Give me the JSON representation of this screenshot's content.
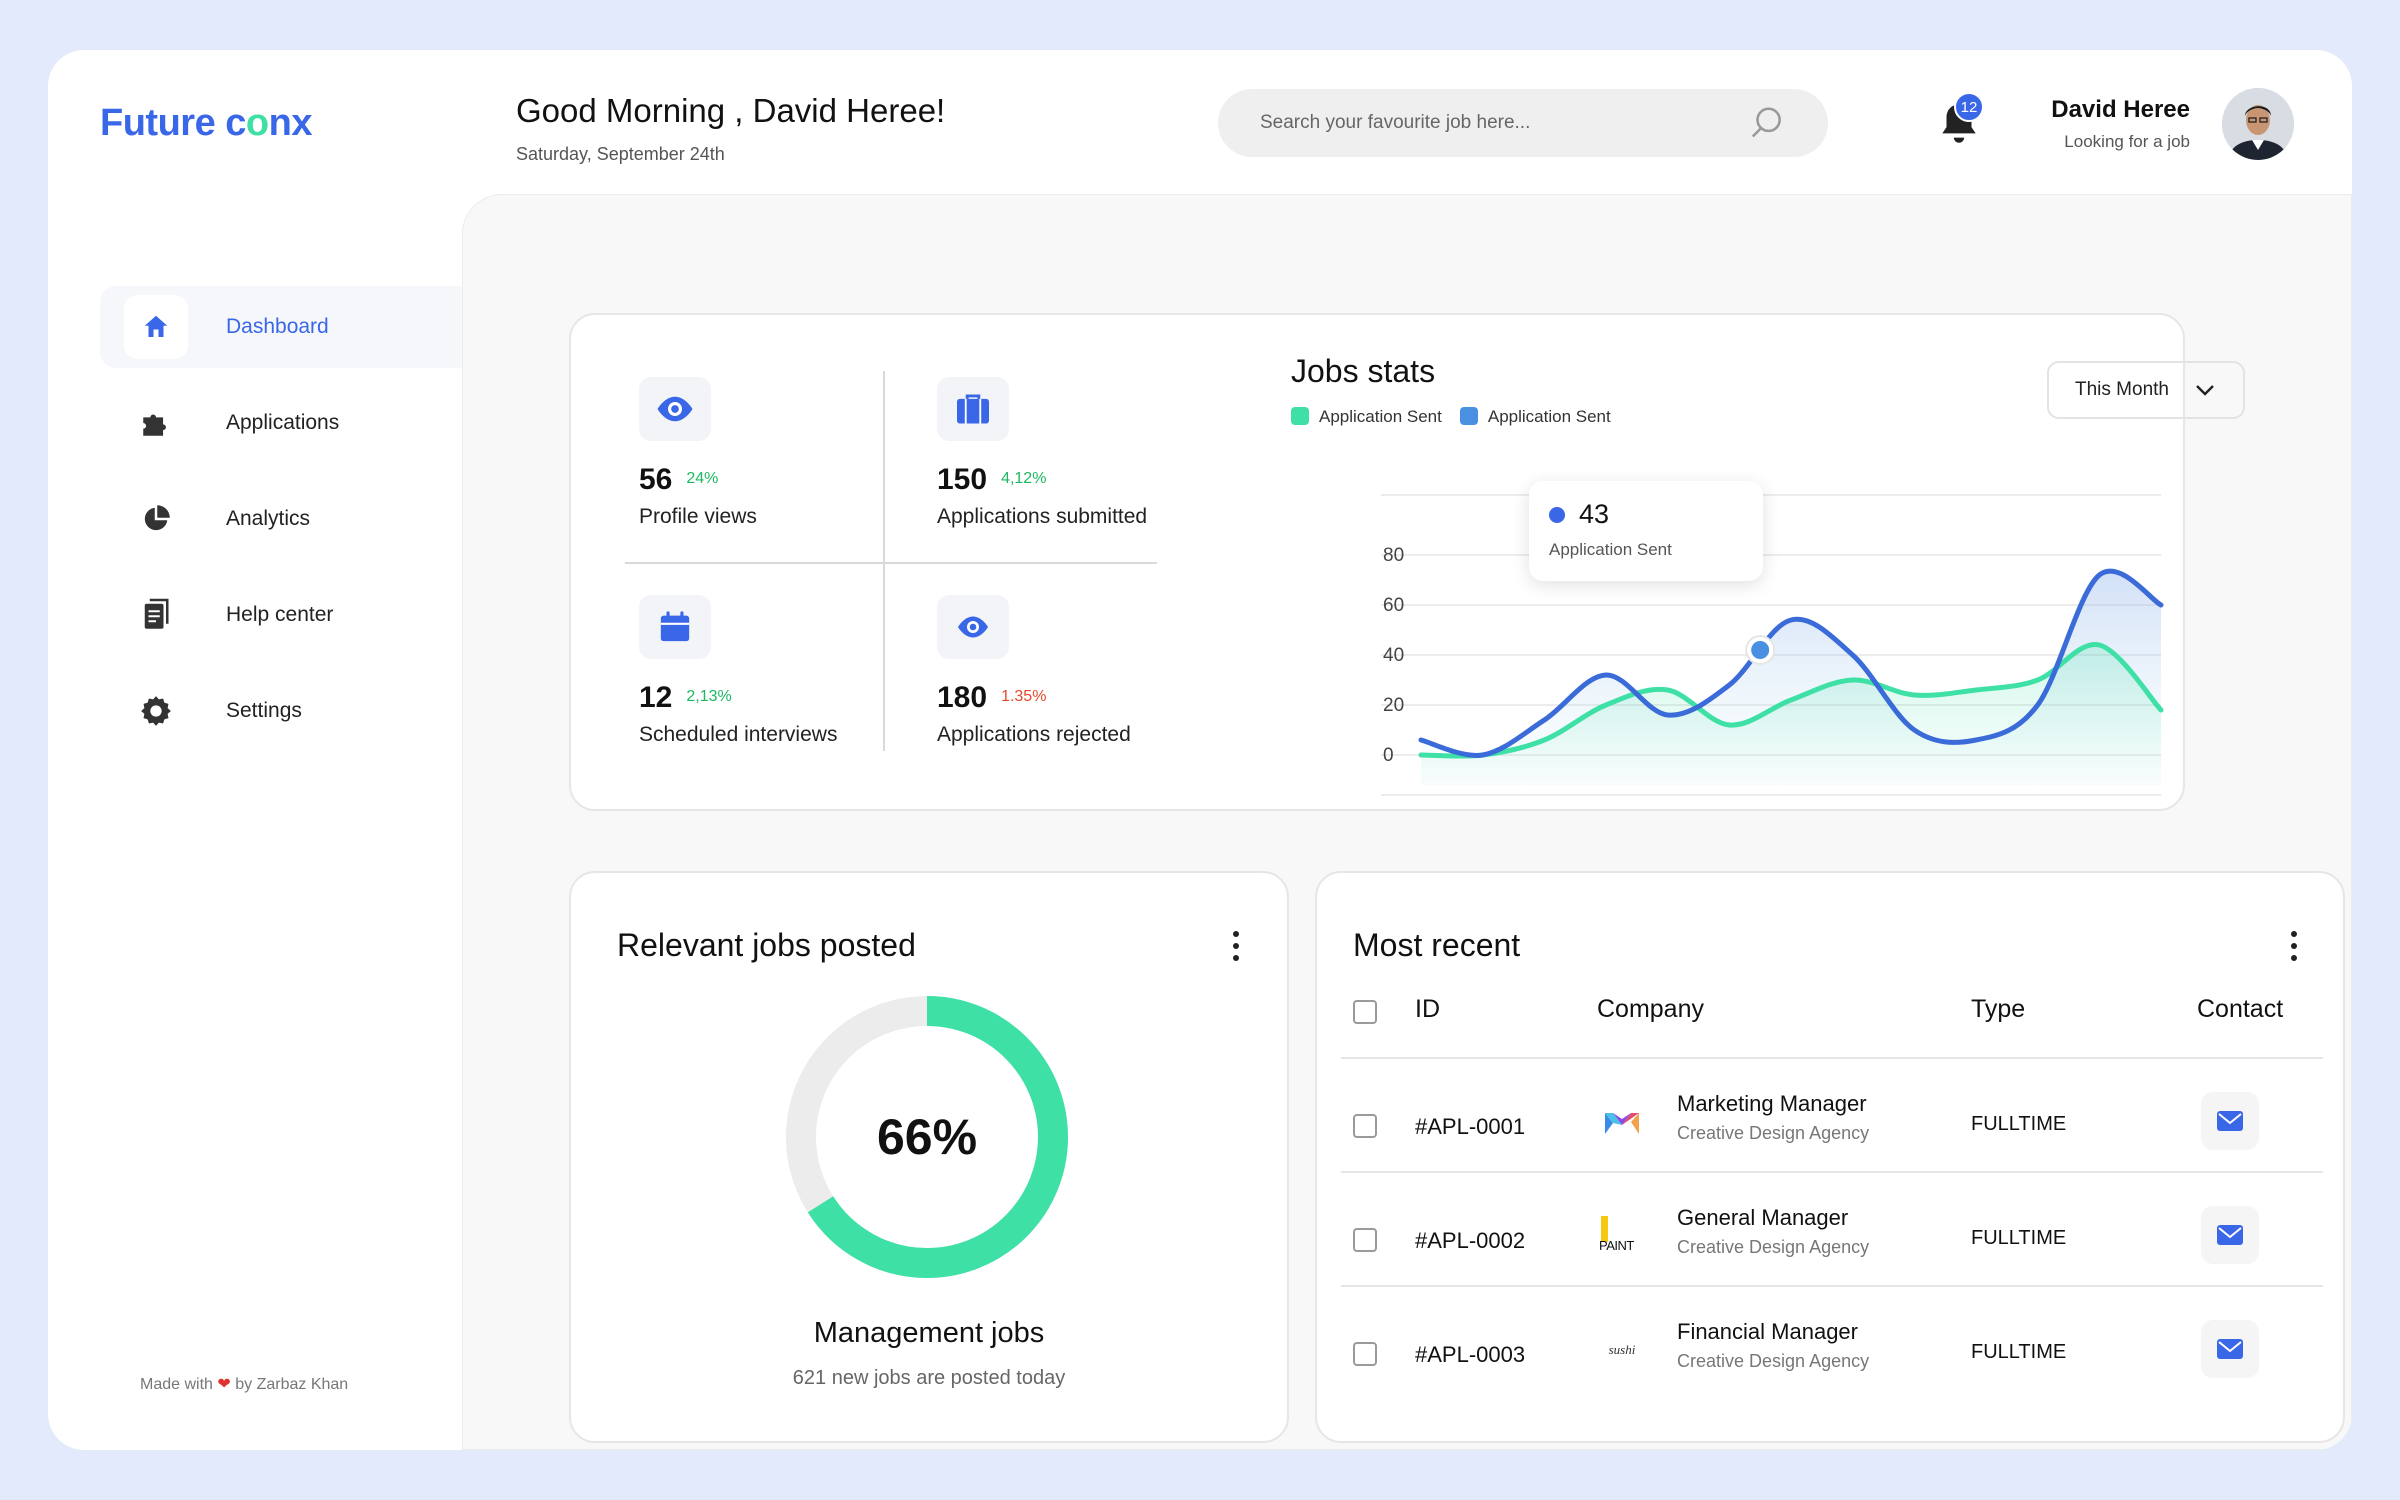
{
  "brand": {
    "part1": "Future c",
    "part2": "o",
    "part3": "nx"
  },
  "header": {
    "greeting": "Good Morning , David Heree!",
    "date": "Saturday, September 24th",
    "search_placeholder": "Search your favourite job here...",
    "notification_count": "12",
    "user_name": "David Heree",
    "user_status": "Looking for a job"
  },
  "sidebar": {
    "items": [
      {
        "label": "Dashboard",
        "icon": "home-icon",
        "active": true
      },
      {
        "label": "Applications",
        "icon": "puzzle-icon",
        "active": false
      },
      {
        "label": "Analytics",
        "icon": "pie-chart-icon",
        "active": false
      },
      {
        "label": "Help center",
        "icon": "document-icon",
        "active": false
      },
      {
        "label": "Settings",
        "icon": "gear-icon",
        "active": false
      }
    ],
    "footer_prefix": "Made with",
    "footer_suffix": "by Zarbaz Khan"
  },
  "stats": [
    {
      "value": "56",
      "change": "24%",
      "trend": "green",
      "label": "Profile views",
      "icon": "eye-icon"
    },
    {
      "value": "150",
      "change": "4,12%",
      "trend": "green",
      "label": "Applications submitted",
      "icon": "briefcase-icon"
    },
    {
      "value": "12",
      "change": "2,13%",
      "trend": "green",
      "label": "Scheduled interviews",
      "icon": "calendar-icon"
    },
    {
      "value": "180",
      "change": "1.35%",
      "trend": "red",
      "label": "Applications rejected",
      "icon": "eye-icon"
    }
  ],
  "jobs_stats": {
    "title": "Jobs stats",
    "filter": "This Month",
    "legend": [
      {
        "label": "Application Sent",
        "color": "#3ee0a6"
      },
      {
        "label": "Application Sent",
        "color": "#4a90e2"
      }
    ],
    "tooltip": {
      "value": "43",
      "label": "Application Sent"
    },
    "chart_data": {
      "type": "line",
      "x": [
        0,
        1,
        2,
        3,
        4,
        5,
        6,
        7,
        8,
        9,
        10,
        11,
        12
      ],
      "series": [
        {
          "name": "Application Sent",
          "color": "#3ee0a6",
          "values": [
            0,
            0,
            6,
            20,
            26,
            12,
            22,
            30,
            24,
            26,
            30,
            44,
            18
          ]
        },
        {
          "name": "Application Sent",
          "color": "#3a6bd8",
          "values": [
            6,
            0,
            14,
            32,
            16,
            28,
            54,
            40,
            10,
            6,
            20,
            72,
            60
          ]
        }
      ],
      "yticks": [
        "80",
        "60",
        "40",
        "20",
        "0"
      ],
      "ylim": [
        0,
        80
      ],
      "grid": true
    }
  },
  "relevant_jobs": {
    "title": "Relevant jobs posted",
    "percent": 66,
    "percent_label": "66%",
    "category": "Management jobs",
    "subtitle": "621 new jobs are posted today",
    "colors": {
      "fill": "#3ee0a6",
      "track": "#ececec"
    }
  },
  "most_recent": {
    "title": "Most recent",
    "columns": [
      "ID",
      "Company",
      "Type",
      "Contact"
    ],
    "rows": [
      {
        "id": "#APL-0001",
        "position": "Marketing Manager",
        "company": "Creative Design Agency",
        "type": "FULLTIME",
        "logo": "m-logo-icon"
      },
      {
        "id": "#APL-0002",
        "position": "General Manager",
        "company": "Creative Design Agency",
        "type": "FULLTIME",
        "logo": "paint-logo-icon",
        "logo_text": "PAINT"
      },
      {
        "id": "#APL-0003",
        "position": "Financial Manager",
        "company": "Creative Design Agency",
        "type": "FULLTIME",
        "logo": "sushi-logo-icon",
        "logo_text": "sushi"
      }
    ]
  },
  "colors": {
    "accent": "#3a66e8",
    "green": "#3ee0a6",
    "red": "#e6492d"
  }
}
